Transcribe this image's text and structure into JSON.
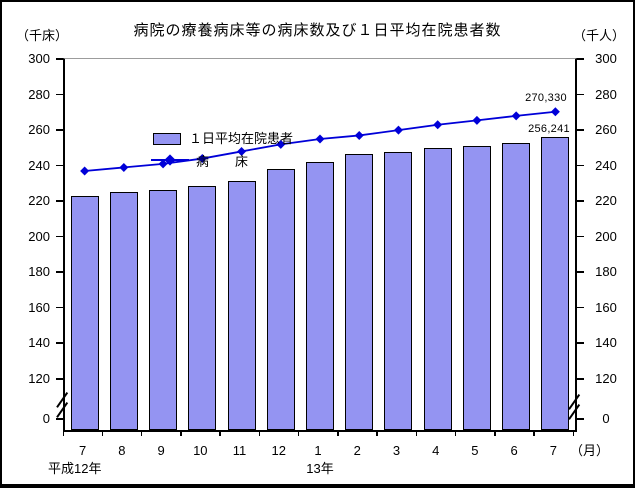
{
  "title": "病院の療養病床等の病床数及び１日平均在院患者数",
  "axes": {
    "left_unit": "（千床）",
    "right_unit": "（千人）",
    "x_unit": "（月）",
    "era_label_heisei12": "平成12年",
    "era_label_13": "13年"
  },
  "legend": {
    "bar_label": "１日平均在院患者",
    "line_label": "病　　床"
  },
  "annotations": {
    "line_last_value": "270,330",
    "bar_last_value": "256,241"
  },
  "colors": {
    "bar_fill": "#9494F2",
    "bar_border": "#000000",
    "line": "#0000D8",
    "plot_top_border": "#9C9C9C"
  },
  "chart_data": {
    "type": "combo-bar-line",
    "title": "病院の療養病床等の病床数及び１日平均在院患者数",
    "categories": [
      "7",
      "8",
      "9",
      "10",
      "11",
      "12",
      "1",
      "2",
      "3",
      "4",
      "5",
      "6",
      "7"
    ],
    "series": [
      {
        "name": "１日平均在院患者",
        "type": "bar",
        "unit": "千人",
        "values": [
          223,
          225,
          226.5,
          228.5,
          231.5,
          238,
          242,
          246.5,
          247.5,
          250,
          251,
          253,
          256.241
        ]
      },
      {
        "name": "病床",
        "type": "line",
        "unit": "千床",
        "values": [
          237,
          239,
          241,
          244,
          248,
          252,
          255,
          257,
          260,
          263,
          265.5,
          268,
          270.33
        ]
      }
    ],
    "y_ticks": [
      300,
      280,
      260,
      240,
      220,
      200,
      180,
      160,
      140,
      120,
      0
    ],
    "ylim": [
      0,
      300
    ],
    "axis_break_between": [
      0,
      120
    ],
    "data_labels": {
      "病床_last": "270,330",
      "１日平均在院患者_last": "256,241"
    },
    "legend_position": "top-left-inside",
    "grid": false
  }
}
